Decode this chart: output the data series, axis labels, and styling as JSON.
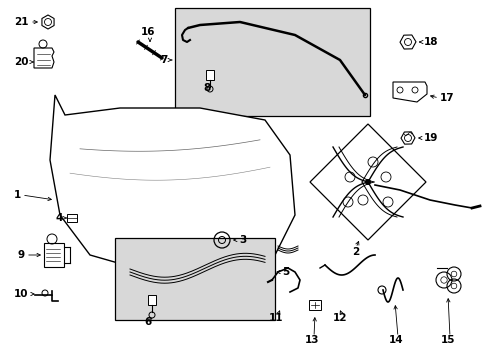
{
  "background_color": "#ffffff",
  "line_color": "#000000",
  "text_color": "#000000",
  "shaded_box_color": "#d8d8d8",
  "fig_width": 4.89,
  "fig_height": 3.6,
  "dpi": 100
}
